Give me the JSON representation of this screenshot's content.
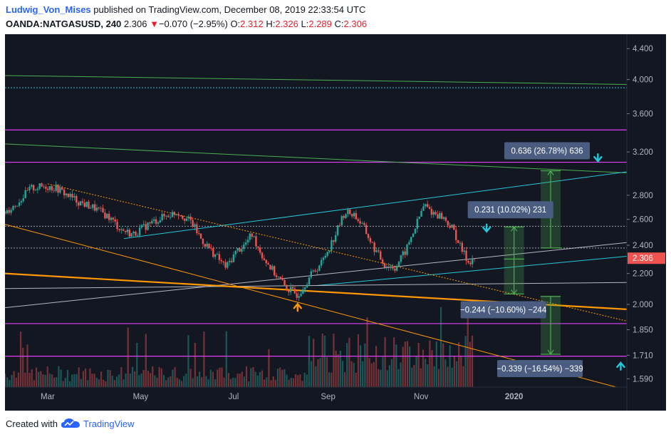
{
  "header": {
    "author": "Ludwig_Von_Mises",
    "published": "published on TradingView.com, December 08, 2019 22:33:54 UTC"
  },
  "ticker": {
    "symbol": "OANDA:NATGASUSD, 240",
    "last": "2.306",
    "change_arrow": "▼",
    "change": "−0.070 (−2.95%)",
    "open_label": "O:",
    "open": "2.312",
    "high_label": "H:",
    "high": "2.326",
    "low_label": "L:",
    "low": "2.289",
    "close_label": "C:",
    "close": "2.306"
  },
  "footer": {
    "created_with": "Created with",
    "brand": "TradingView",
    "logo_icon": "tradingview-cloud-icon"
  },
  "colors": {
    "background": "#131722",
    "up": "#26a69a",
    "down": "#ef5350",
    "magenta": "#e040fb",
    "cyan": "#26c6da",
    "green": "#4caf50",
    "orange": "#ff9800",
    "white": "#d1d4dc",
    "price_tag": "#ef5350",
    "label_box": "#4a5d80"
  },
  "chart_data": {
    "type": "candlestick",
    "symbol": "NATGASUSD",
    "timeframe": "240",
    "x_tick_labels": [
      "Mar",
      "May",
      "Jul",
      "Sep",
      "Nov",
      "2020"
    ],
    "y_tick_labels": [
      "4.400",
      "4.000",
      "3.600",
      "3.200",
      "2.800",
      "2.600",
      "2.400",
      "2.200",
      "2.000",
      "1.850",
      "1.710",
      "1.590"
    ],
    "y_scale": "log",
    "y_range": [
      1.55,
      4.6
    ],
    "x_range": [
      "2019-02-01",
      "2020-03-15"
    ],
    "last_price": "2.306",
    "price_path": [
      [
        "2019-02-01",
        2.66
      ],
      [
        "2019-02-08",
        2.72
      ],
      [
        "2019-02-18",
        2.86
      ],
      [
        "2019-02-28",
        2.88
      ],
      [
        "2019-03-07",
        2.86
      ],
      [
        "2019-03-14",
        2.8
      ],
      [
        "2019-03-22",
        2.74
      ],
      [
        "2019-04-01",
        2.69
      ],
      [
        "2019-04-10",
        2.62
      ],
      [
        "2019-04-18",
        2.52
      ],
      [
        "2019-04-26",
        2.48
      ],
      [
        "2019-05-06",
        2.56
      ],
      [
        "2019-05-16",
        2.62
      ],
      [
        "2019-05-25",
        2.66
      ],
      [
        "2019-06-03",
        2.58
      ],
      [
        "2019-06-10",
        2.44
      ],
      [
        "2019-06-18",
        2.34
      ],
      [
        "2019-06-26",
        2.24
      ],
      [
        "2019-07-03",
        2.36
      ],
      [
        "2019-07-08",
        2.4
      ],
      [
        "2019-07-13",
        2.48
      ],
      [
        "2019-07-20",
        2.32
      ],
      [
        "2019-07-28",
        2.2
      ],
      [
        "2019-08-05",
        2.1
      ],
      [
        "2019-08-12",
        2.06
      ],
      [
        "2019-08-20",
        2.18
      ],
      [
        "2019-08-28",
        2.28
      ],
      [
        "2019-09-05",
        2.46
      ],
      [
        "2019-09-12",
        2.66
      ],
      [
        "2019-09-18",
        2.64
      ],
      [
        "2019-09-24",
        2.54
      ],
      [
        "2019-10-01",
        2.38
      ],
      [
        "2019-10-08",
        2.26
      ],
      [
        "2019-10-15",
        2.24
      ],
      [
        "2019-10-22",
        2.36
      ],
      [
        "2019-10-29",
        2.56
      ],
      [
        "2019-11-03",
        2.72
      ],
      [
        "2019-11-08",
        2.66
      ],
      [
        "2019-11-15",
        2.62
      ],
      [
        "2019-11-22",
        2.52
      ],
      [
        "2019-11-27",
        2.38
      ],
      [
        "2019-12-02",
        2.28
      ],
      [
        "2019-12-06",
        2.306
      ]
    ],
    "horizontal_levels": [
      {
        "price": 3.9,
        "style": "dotted",
        "color": "cyan"
      },
      {
        "price": 3.425,
        "style": "solid",
        "color": "magenta"
      },
      {
        "price": 3.1,
        "style": "solid",
        "color": "magenta"
      },
      {
        "price": 2.545,
        "style": "dotted",
        "color": "white"
      },
      {
        "price": 2.38,
        "style": "dotted",
        "color": "white"
      },
      {
        "price": 1.885,
        "style": "solid",
        "color": "magenta"
      },
      {
        "price": 1.705,
        "style": "solid",
        "color": "magenta"
      }
    ],
    "trendlines": [
      {
        "color": "green",
        "from": [
          "2019-02-01",
          4.05
        ],
        "to": [
          "2020-03-15",
          3.94
        ]
      },
      {
        "color": "green",
        "from": [
          "2019-02-01",
          3.28
        ],
        "to": [
          "2020-03-15",
          3.0
        ]
      },
      {
        "color": "cyan",
        "from": [
          "2019-04-20",
          2.45
        ],
        "to": [
          "2020-03-15",
          3.01
        ]
      },
      {
        "color": "cyan",
        "from": [
          "2019-08-25",
          2.12
        ],
        "to": [
          "2020-03-15",
          2.32
        ]
      },
      {
        "color": "white",
        "from": [
          "2019-02-01",
          1.98
        ],
        "to": [
          "2020-03-15",
          2.42
        ]
      },
      {
        "color": "white",
        "from": [
          "2019-02-01",
          2.1
        ],
        "to": [
          "2020-03-15",
          2.14
        ]
      },
      {
        "color": "orange",
        "from": [
          "2019-02-01",
          2.2
        ],
        "to": [
          "2020-03-15",
          1.97
        ]
      },
      {
        "color": "orange",
        "from": [
          "2019-02-01",
          2.56
        ],
        "to": [
          "2020-03-08",
          1.55
        ]
      },
      {
        "color": "orange-dotted",
        "from": [
          "2019-03-01",
          2.9
        ],
        "to": [
          "2020-03-15",
          1.9
        ]
      }
    ],
    "measurements": [
      {
        "label": "0.636 (26.78%) 636",
        "from": 2.38,
        "to": 3.02,
        "date": "2020-01-25",
        "direction": "up"
      },
      {
        "label": "0.231 (10.02%) 231",
        "from": 2.3,
        "to": 2.54,
        "date": "2020-01-01",
        "direction": "up"
      },
      {
        "label": "−0.244 (−10.60%) −244",
        "from": 2.3,
        "to": 2.065,
        "date": "2020-01-01",
        "direction": "down"
      },
      {
        "label": "−0.339 (−16.54%) −339",
        "from": 2.05,
        "to": 1.715,
        "date": "2020-01-25",
        "direction": "down"
      }
    ],
    "markers": [
      {
        "date": "2019-08-12",
        "price": 1.99,
        "color": "orange",
        "icon": "arrow-up"
      },
      {
        "date": "2019-12-14",
        "price": 2.52,
        "color": "cyan",
        "icon": "arrow-down"
      },
      {
        "date": "2020-02-25",
        "price": 3.13,
        "color": "cyan",
        "icon": "arrow-down"
      },
      {
        "date": "2020-03-11",
        "price": 1.66,
        "color": "cyan",
        "icon": "arrow-up"
      }
    ],
    "has_volume": true,
    "grid": false
  }
}
